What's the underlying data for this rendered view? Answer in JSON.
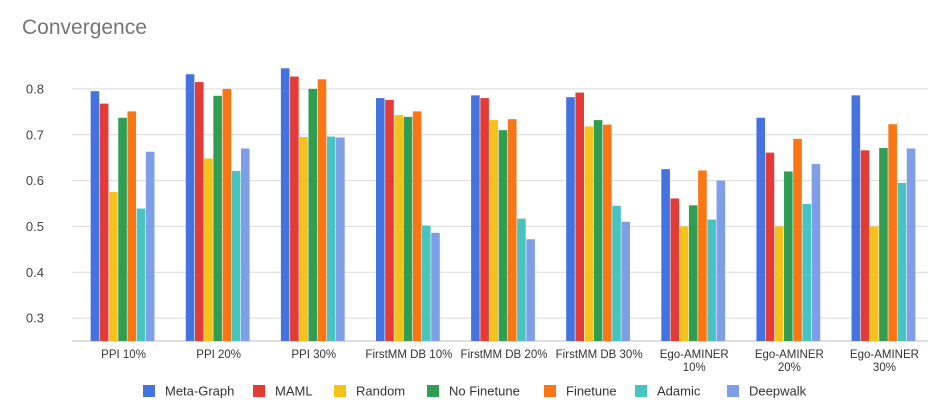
{
  "chart_data": {
    "type": "bar",
    "title": "Convergence",
    "xlabel": "",
    "ylabel": "",
    "ylim": [
      0.25,
      0.85
    ],
    "yticks": [
      "0.3",
      "0.4",
      "0.5",
      "0.6",
      "0.7",
      "0.8"
    ],
    "grid": true,
    "legend_position": "bottom",
    "categories": [
      [
        "PPI 10%"
      ],
      [
        "PPI 20%"
      ],
      [
        "PPI 30%"
      ],
      [
        "FirstMM DB 10%"
      ],
      [
        "FirstMM DB 20%"
      ],
      [
        "FirstMM DB 30%"
      ],
      [
        "Ego-AMINER",
        "10%"
      ],
      [
        "Ego-AMINER",
        "20%"
      ],
      [
        "Ego-AMINER",
        "30%"
      ]
    ],
    "series": [
      {
        "name": "Meta-Graph",
        "color": "#4472e0",
        "values": [
          0.795,
          0.832,
          0.845,
          0.78,
          0.786,
          0.782,
          0.625,
          0.737,
          0.786
        ]
      },
      {
        "name": "MAML",
        "color": "#e33b36",
        "values": [
          0.768,
          0.815,
          0.827,
          0.776,
          0.78,
          0.792,
          0.561,
          0.661,
          0.666
        ]
      },
      {
        "name": "Random",
        "color": "#f5c11b",
        "values": [
          0.575,
          0.648,
          0.695,
          0.743,
          0.732,
          0.718,
          0.5,
          0.5,
          0.5
        ]
      },
      {
        "name": "No Finetune",
        "color": "#2f9e52",
        "values": [
          0.737,
          0.785,
          0.8,
          0.739,
          0.71,
          0.732,
          0.546,
          0.62,
          0.671
        ]
      },
      {
        "name": "Finetune",
        "color": "#fa7614",
        "values": [
          0.751,
          0.8,
          0.821,
          0.751,
          0.734,
          0.722,
          0.622,
          0.691,
          0.723
        ]
      },
      {
        "name": "Adamic",
        "color": "#48c4c0",
        "values": [
          0.539,
          0.621,
          0.696,
          0.502,
          0.517,
          0.545,
          0.515,
          0.549,
          0.595
        ]
      },
      {
        "name": "Deepwalk",
        "color": "#7f9ee8",
        "values": [
          0.663,
          0.67,
          0.694,
          0.486,
          0.472,
          0.51,
          0.6,
          0.636,
          0.67
        ]
      }
    ]
  }
}
